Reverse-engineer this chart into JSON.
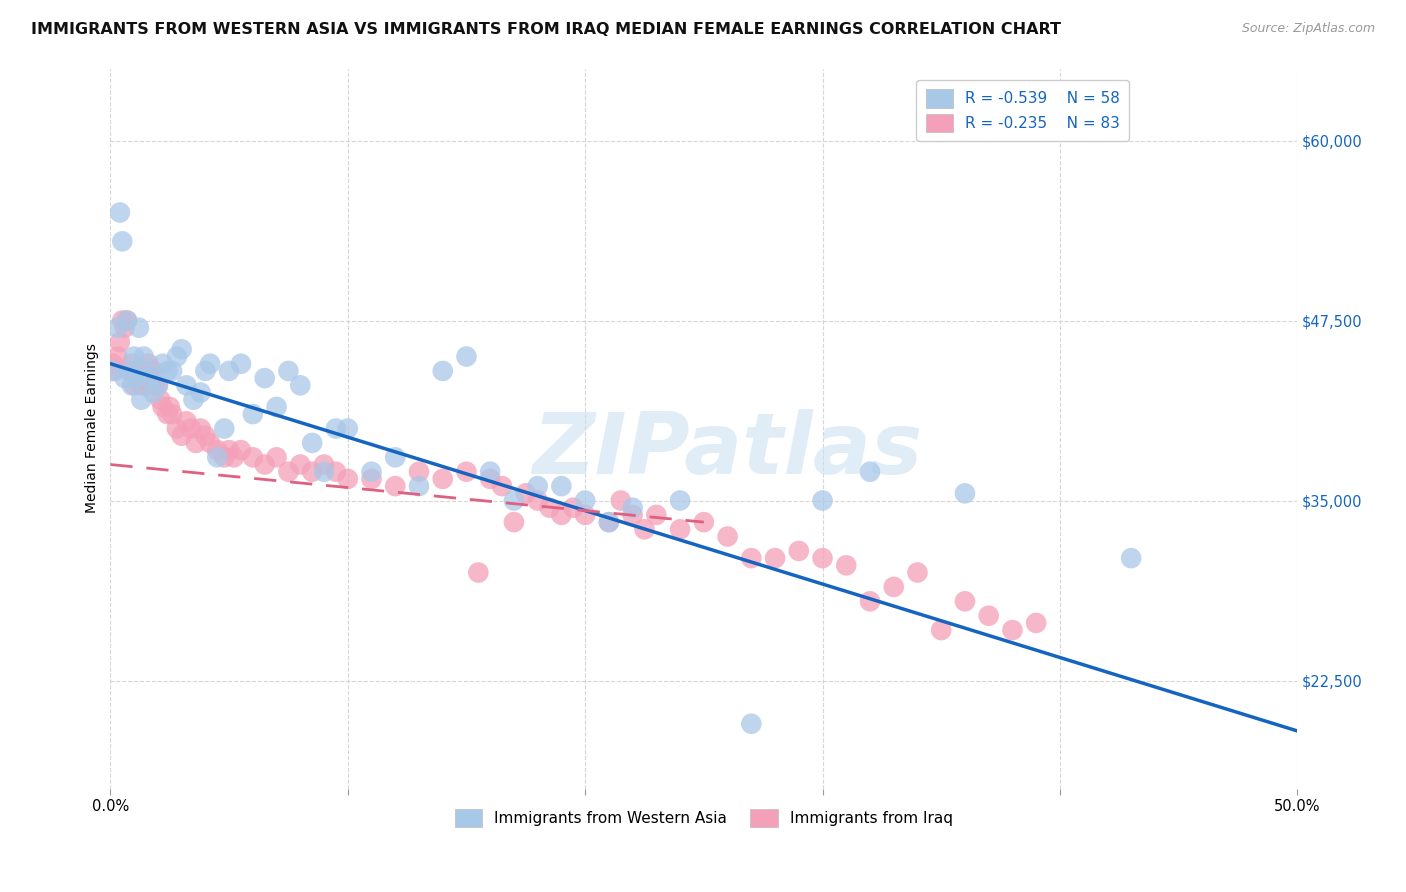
{
  "title": "IMMIGRANTS FROM WESTERN ASIA VS IMMIGRANTS FROM IRAQ MEDIAN FEMALE EARNINGS CORRELATION CHART",
  "source": "Source: ZipAtlas.com",
  "ylabel": "Median Female Earnings",
  "yticks": [
    22500,
    35000,
    47500,
    60000
  ],
  "ytick_labels": [
    "$22,500",
    "$35,000",
    "$47,500",
    "$60,000"
  ],
  "xmin": 0.0,
  "xmax": 0.5,
  "ymin": 15000,
  "ymax": 65000,
  "watermark": "ZIPatlas",
  "legend_blue_r": "-0.539",
  "legend_blue_n": "58",
  "legend_pink_r": "-0.235",
  "legend_pink_n": "83",
  "blue_line": [
    [
      0.0,
      44500
    ],
    [
      0.5,
      19000
    ]
  ],
  "pink_line": [
    [
      0.0,
      37500
    ],
    [
      0.25,
      33500
    ]
  ],
  "series_blue": {
    "label": "Immigrants from Western Asia",
    "color": "#a8c8e8",
    "points": [
      [
        0.001,
        44000
      ],
      [
        0.003,
        47000
      ],
      [
        0.004,
        55000
      ],
      [
        0.005,
        53000
      ],
      [
        0.006,
        43500
      ],
      [
        0.007,
        47500
      ],
      [
        0.008,
        44000
      ],
      [
        0.009,
        43000
      ],
      [
        0.01,
        45000
      ],
      [
        0.011,
        43500
      ],
      [
        0.012,
        47000
      ],
      [
        0.013,
        42000
      ],
      [
        0.014,
        45000
      ],
      [
        0.015,
        44000
      ],
      [
        0.016,
        43500
      ],
      [
        0.018,
        42500
      ],
      [
        0.02,
        43000
      ],
      [
        0.022,
        44500
      ],
      [
        0.024,
        44000
      ],
      [
        0.026,
        44000
      ],
      [
        0.028,
        45000
      ],
      [
        0.03,
        45500
      ],
      [
        0.032,
        43000
      ],
      [
        0.035,
        42000
      ],
      [
        0.038,
        42500
      ],
      [
        0.04,
        44000
      ],
      [
        0.042,
        44500
      ],
      [
        0.045,
        38000
      ],
      [
        0.048,
        40000
      ],
      [
        0.05,
        44000
      ],
      [
        0.055,
        44500
      ],
      [
        0.06,
        41000
      ],
      [
        0.065,
        43500
      ],
      [
        0.07,
        41500
      ],
      [
        0.075,
        44000
      ],
      [
        0.08,
        43000
      ],
      [
        0.085,
        39000
      ],
      [
        0.09,
        37000
      ],
      [
        0.095,
        40000
      ],
      [
        0.1,
        40000
      ],
      [
        0.11,
        37000
      ],
      [
        0.12,
        38000
      ],
      [
        0.13,
        36000
      ],
      [
        0.14,
        44000
      ],
      [
        0.15,
        45000
      ],
      [
        0.16,
        37000
      ],
      [
        0.17,
        35000
      ],
      [
        0.18,
        36000
      ],
      [
        0.19,
        36000
      ],
      [
        0.2,
        35000
      ],
      [
        0.21,
        33500
      ],
      [
        0.22,
        34500
      ],
      [
        0.24,
        35000
      ],
      [
        0.27,
        19500
      ],
      [
        0.3,
        35000
      ],
      [
        0.32,
        37000
      ],
      [
        0.36,
        35500
      ],
      [
        0.43,
        31000
      ]
    ]
  },
  "series_pink": {
    "label": "Immigrants from Iraq",
    "color": "#f4a0b8",
    "points": [
      [
        0.001,
        44500
      ],
      [
        0.002,
        44000
      ],
      [
        0.003,
        45000
      ],
      [
        0.004,
        46000
      ],
      [
        0.005,
        47500
      ],
      [
        0.006,
        47000
      ],
      [
        0.007,
        47500
      ],
      [
        0.008,
        44000
      ],
      [
        0.009,
        44500
      ],
      [
        0.01,
        43000
      ],
      [
        0.011,
        44000
      ],
      [
        0.012,
        43500
      ],
      [
        0.013,
        43000
      ],
      [
        0.014,
        44000
      ],
      [
        0.015,
        43000
      ],
      [
        0.016,
        44500
      ],
      [
        0.017,
        43500
      ],
      [
        0.018,
        44000
      ],
      [
        0.019,
        43000
      ],
      [
        0.02,
        43000
      ],
      [
        0.021,
        42000
      ],
      [
        0.022,
        41500
      ],
      [
        0.024,
        41000
      ],
      [
        0.025,
        41500
      ],
      [
        0.026,
        41000
      ],
      [
        0.028,
        40000
      ],
      [
        0.03,
        39500
      ],
      [
        0.032,
        40500
      ],
      [
        0.034,
        40000
      ],
      [
        0.036,
        39000
      ],
      [
        0.038,
        40000
      ],
      [
        0.04,
        39500
      ],
      [
        0.042,
        39000
      ],
      [
        0.045,
        38500
      ],
      [
        0.048,
        38000
      ],
      [
        0.05,
        38500
      ],
      [
        0.052,
        38000
      ],
      [
        0.055,
        38500
      ],
      [
        0.06,
        38000
      ],
      [
        0.065,
        37500
      ],
      [
        0.07,
        38000
      ],
      [
        0.075,
        37000
      ],
      [
        0.08,
        37500
      ],
      [
        0.085,
        37000
      ],
      [
        0.09,
        37500
      ],
      [
        0.095,
        37000
      ],
      [
        0.1,
        36500
      ],
      [
        0.11,
        36500
      ],
      [
        0.12,
        36000
      ],
      [
        0.13,
        37000
      ],
      [
        0.14,
        36500
      ],
      [
        0.15,
        37000
      ],
      [
        0.155,
        30000
      ],
      [
        0.16,
        36500
      ],
      [
        0.165,
        36000
      ],
      [
        0.17,
        33500
      ],
      [
        0.175,
        35500
      ],
      [
        0.18,
        35000
      ],
      [
        0.185,
        34500
      ],
      [
        0.19,
        34000
      ],
      [
        0.195,
        34500
      ],
      [
        0.2,
        34000
      ],
      [
        0.21,
        33500
      ],
      [
        0.215,
        35000
      ],
      [
        0.22,
        34000
      ],
      [
        0.225,
        33000
      ],
      [
        0.23,
        34000
      ],
      [
        0.24,
        33000
      ],
      [
        0.25,
        33500
      ],
      [
        0.26,
        32500
      ],
      [
        0.27,
        31000
      ],
      [
        0.28,
        31000
      ],
      [
        0.29,
        31500
      ],
      [
        0.3,
        31000
      ],
      [
        0.31,
        30500
      ],
      [
        0.32,
        28000
      ],
      [
        0.33,
        29000
      ],
      [
        0.34,
        30000
      ],
      [
        0.35,
        26000
      ],
      [
        0.36,
        28000
      ],
      [
        0.37,
        27000
      ],
      [
        0.38,
        26000
      ],
      [
        0.39,
        26500
      ]
    ]
  },
  "title_fontsize": 11.5,
  "source_fontsize": 9,
  "label_fontsize": 10,
  "tick_fontsize": 10.5
}
